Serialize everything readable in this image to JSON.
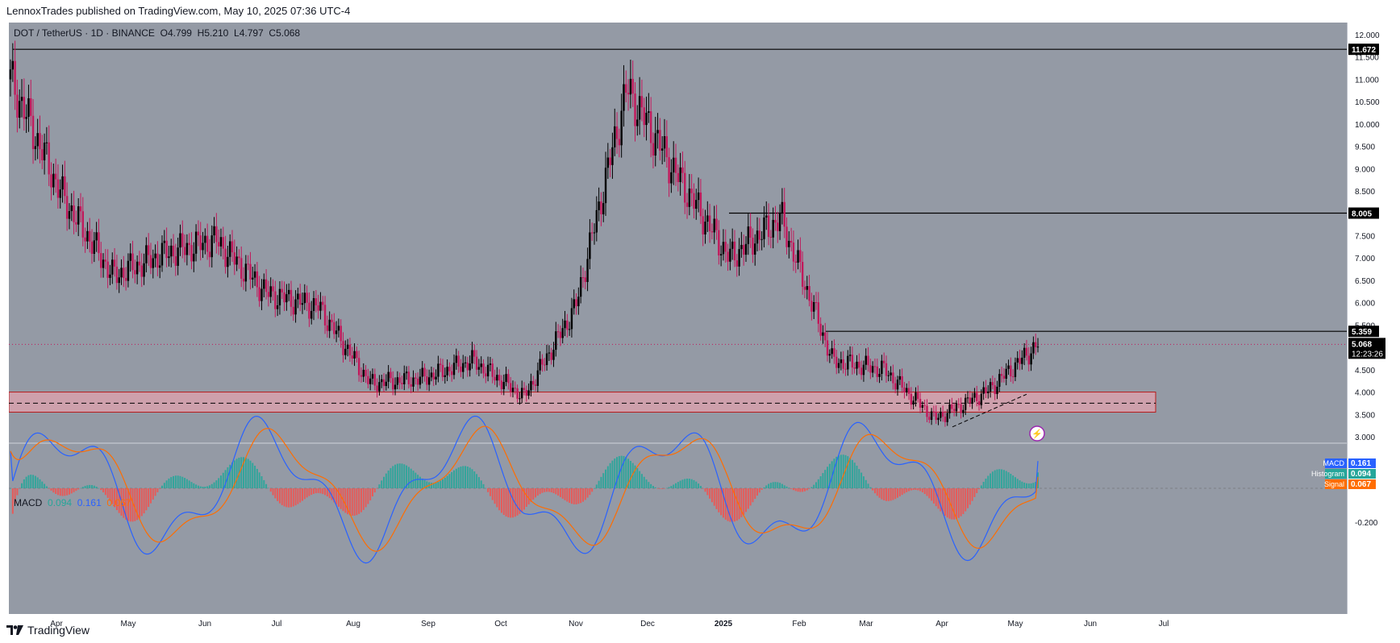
{
  "header": {
    "published": "LennoxTrades published on TradingView.com, May 10, 2025 07:36 UTC-4"
  },
  "legend": {
    "symbol": "DOT / TetherUS · 1D · BINANCE",
    "open": "O4.799",
    "high": "H5.210",
    "low": "L4.797",
    "close": "C5.068"
  },
  "macd_legend": {
    "label": "MACD",
    "hist": "0.094",
    "macd": "0.161",
    "signal": "0.067"
  },
  "price_axis_labels": [
    "12.000",
    "11.500",
    "11.000",
    "10.500",
    "10.000",
    "9.500",
    "9.000",
    "8.500",
    "8.000",
    "7.500",
    "7.000",
    "6.500",
    "6.000",
    "5.500",
    "5.000",
    "4.500",
    "4.000",
    "3.500",
    "3.000"
  ],
  "price_tags": [
    {
      "value": "11.672",
      "price": 11.672
    },
    {
      "value": "8.005",
      "price": 8.005
    },
    {
      "value": "5.359",
      "price": 5.359
    }
  ],
  "last_price": {
    "value": "5.068",
    "countdown": "12:23:26",
    "price": 5.068
  },
  "macd_axis_labels": [
    {
      "text": "-0.200",
      "v": -0.2
    }
  ],
  "macd_tags": [
    {
      "label": "MACD",
      "value": "0.161",
      "color": "#2962ff"
    },
    {
      "label": "Histogram",
      "value": "0.094",
      "color": "#26a69a"
    },
    {
      "label": "Signal",
      "value": "0.067",
      "color": "#ff6d00"
    }
  ],
  "time_labels": [
    "Apr",
    "May",
    "Jun",
    "Jul",
    "Aug",
    "Sep",
    "Oct",
    "Nov",
    "Dec",
    "2025",
    "Feb",
    "Mar",
    "Apr",
    "May",
    "Jun",
    "Jul"
  ],
  "footer": {
    "brand": "TradingView"
  },
  "colors": {
    "background": "#949aa5",
    "candle": "#c2185b",
    "hline": "#000000",
    "zone": "#d8a1ad",
    "zone_border": "#b71c1c",
    "macd": "#2962ff",
    "signal": "#ff6d00",
    "hist_pos": "#26a69a",
    "hist_neg": "#ef5350"
  },
  "chart_data": {
    "type": "candlestick",
    "price_range": [
      3.0,
      12.0
    ],
    "horizontal_levels": [
      11.672,
      8.005,
      5.359
    ],
    "support_zone": [
      3.55,
      4.0
    ],
    "support_midline": 3.75,
    "close_path": [
      {
        "month": "Mar 2024",
        "close": 11.0
      },
      {
        "month": "Apr",
        "close": 8.4
      },
      {
        "month": "Apr",
        "close": 6.6
      },
      {
        "month": "May",
        "close": 7.1
      },
      {
        "month": "Jun",
        "close": 7.4
      },
      {
        "month": "Jul",
        "close": 6.2
      },
      {
        "month": "Jul",
        "close": 5.9
      },
      {
        "month": "Aug",
        "close": 4.2
      },
      {
        "month": "Sep",
        "close": 4.3
      },
      {
        "month": "Oct",
        "close": 4.7
      },
      {
        "month": "Nov",
        "close": 3.9
      },
      {
        "month": "Nov",
        "close": 5.9
      },
      {
        "month": "Dec",
        "close": 10.8
      },
      {
        "month": "Dec",
        "close": 8.8
      },
      {
        "month": "Jan 2025",
        "close": 7.0
      },
      {
        "month": "Jan",
        "close": 7.9
      },
      {
        "month": "Feb",
        "close": 4.7
      },
      {
        "month": "Mar",
        "close": 4.5
      },
      {
        "month": "Apr",
        "close": 3.4
      },
      {
        "month": "May",
        "close": 4.0
      },
      {
        "month": "May",
        "close": 5.068
      }
    ],
    "macd": {
      "macd": 0.161,
      "histogram": 0.094,
      "signal": 0.067
    }
  }
}
